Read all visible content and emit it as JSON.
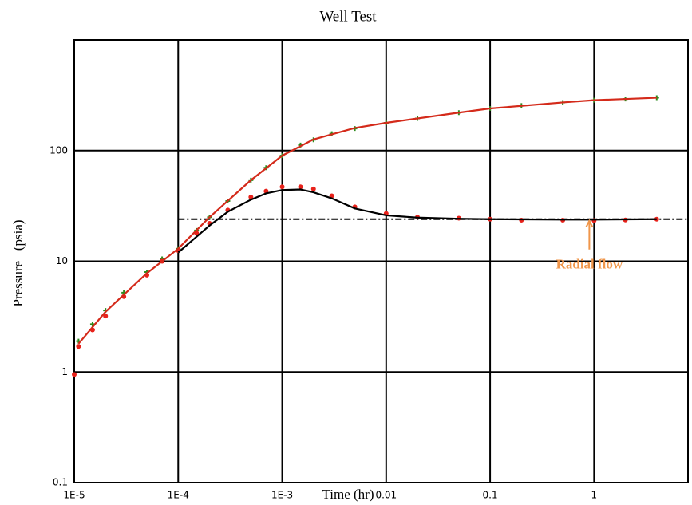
{
  "chart_data": {
    "type": "line",
    "title": "Well Test",
    "x_label": "Time (hr)",
    "y_label": "Pressure   (psia)",
    "log_x": true,
    "log_y": true,
    "grid": true,
    "xlim": [
      1e-05,
      8
    ],
    "ylim": [
      0.1,
      1000
    ],
    "xticks": [
      {
        "value": 1e-05,
        "label": "1E-5"
      },
      {
        "value": 0.0001,
        "label": "1E-4"
      },
      {
        "value": 0.001,
        "label": "1E-3"
      },
      0.01,
      0.1,
      1
    ],
    "yticks": [
      0.1,
      1,
      10,
      100
    ],
    "series": [
      {
        "color": "#2e8b1e",
        "style": "plus",
        "x": [
          1.1e-05,
          1.5e-05,
          2e-05,
          3e-05,
          5e-05,
          7e-05,
          0.0001,
          0.00015,
          0.0002,
          0.0003,
          0.0005,
          0.0007,
          0.001,
          0.0015,
          0.002,
          0.003,
          0.005,
          0.01,
          0.02,
          0.05,
          0.1,
          0.2,
          0.5,
          1,
          2,
          4
        ],
        "values": [
          1.9,
          2.7,
          3.6,
          5.2,
          8,
          10.5,
          13,
          19,
          25,
          35,
          54,
          70,
          90,
          112,
          125,
          142,
          158,
          178,
          195,
          220,
          240,
          255,
          272,
          285,
          292,
          300
        ]
      },
      {
        "color": "#e8221b",
        "style": "circle",
        "x": [
          1e-05,
          1.1e-05,
          1.5e-05,
          2e-05,
          3e-05,
          5e-05,
          7e-05,
          0.0001,
          0.00015,
          0.0002,
          0.0003,
          0.0005,
          0.0007,
          0.001,
          0.0015,
          0.002,
          0.003,
          0.005,
          0.01,
          0.02,
          0.05,
          0.1,
          0.2,
          0.5,
          1,
          2,
          4
        ],
        "values": [
          0.95,
          1.7,
          2.4,
          3.2,
          4.8,
          7.5,
          10,
          12.5,
          18,
          22,
          29,
          38,
          43,
          47,
          47,
          45,
          39,
          31,
          27,
          25,
          24.5,
          24,
          23.5,
          23.5,
          23.3,
          23.6,
          24
        ]
      },
      {
        "color": "#d42a1a",
        "style": "line",
        "x": [
          1.1e-05,
          2e-05,
          5e-05,
          0.0001,
          0.0002,
          0.0005,
          0.001,
          0.002,
          0.005,
          0.01,
          0.05,
          0.1,
          0.5,
          1,
          4
        ],
        "values": [
          1.8,
          3.5,
          7.8,
          13,
          25,
          54,
          90,
          126,
          160,
          178,
          220,
          240,
          272,
          285,
          300
        ]
      },
      {
        "color": "#000000",
        "style": "line",
        "x": [
          0.0001,
          0.0002,
          0.0003,
          0.0005,
          0.0007,
          0.001,
          0.0015,
          0.002,
          0.003,
          0.005,
          0.01,
          0.02,
          0.05,
          0.1,
          0.5,
          1,
          4
        ],
        "values": [
          12,
          21,
          28,
          36,
          41,
          44,
          44.5,
          42,
          37,
          30,
          26,
          24.8,
          24.2,
          24,
          23.8,
          23.8,
          24
        ]
      }
    ],
    "reference_line": {
      "value": 24,
      "x_start": 0.0001,
      "color": "#000000"
    },
    "annotation": {
      "text": "Radial flow",
      "x": 0.9,
      "y": 24,
      "color": "#f0964a"
    }
  }
}
